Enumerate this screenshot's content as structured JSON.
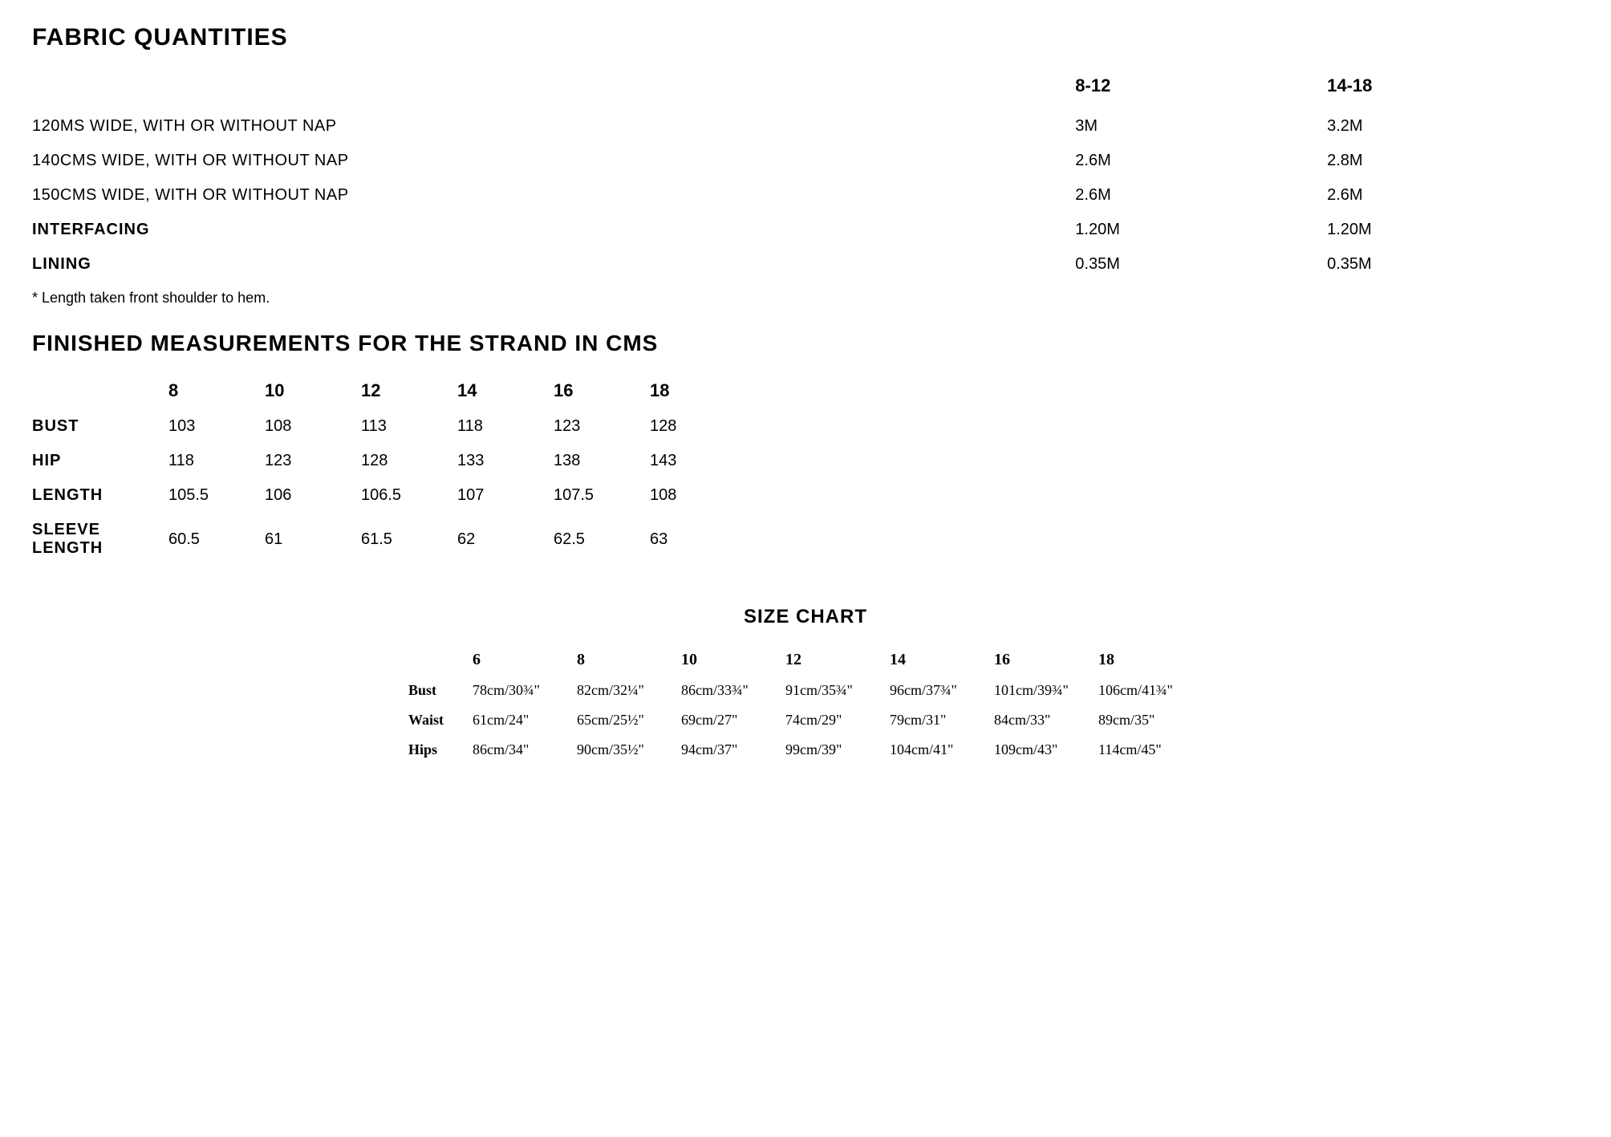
{
  "fabric": {
    "title": "FABRIC QUANTITIES",
    "header": {
      "col1": "8-12",
      "col2": "14-18"
    },
    "rows": [
      {
        "label": "120MS WIDE, WITH OR WITHOUT NAP",
        "v1": "3M",
        "v2": "3.2M",
        "bold": false
      },
      {
        "label": "140CMS WIDE, WITH OR WITHOUT NAP",
        "v1": "2.6M",
        "v2": "2.8M",
        "bold": false
      },
      {
        "label": "150CMS WIDE, WITH OR WITHOUT NAP",
        "v1": "2.6M",
        "v2": "2.6M",
        "bold": false
      },
      {
        "label": "INTERFACING",
        "v1": "1.20M",
        "v2": "1.20M",
        "bold": true
      },
      {
        "label": "LINING",
        "v1": "0.35M",
        "v2": "0.35M",
        "bold": true
      }
    ],
    "footnote": "* Length taken front shoulder to hem."
  },
  "measurements": {
    "title": "FINISHED MEASUREMENTS FOR THE STRAND IN CMS",
    "sizes": [
      "8",
      "10",
      "12",
      "14",
      "16",
      "18"
    ],
    "rows": [
      {
        "label": "BUST",
        "values": [
          "103",
          "108",
          "113",
          "118",
          "123",
          "128"
        ]
      },
      {
        "label": "HIP",
        "values": [
          "118",
          "123",
          "128",
          "133",
          "138",
          "143"
        ]
      },
      {
        "label": "LENGTH",
        "values": [
          "105.5",
          "106",
          "106.5",
          "107",
          "107.5",
          "108"
        ]
      },
      {
        "label": "SLEEVE LENGTH",
        "values": [
          "60.5",
          "61",
          "61.5",
          "62",
          "62.5",
          "63"
        ]
      }
    ]
  },
  "sizeChart": {
    "title": "SIZE CHART",
    "sizes": [
      "6",
      "8",
      "10",
      "12",
      "14",
      "16",
      "18"
    ],
    "rows": [
      {
        "label": "Bust",
        "values": [
          "78cm/30¾\"",
          "82cm/32¼\"",
          "86cm/33¾\"",
          "91cm/35¾\"",
          "96cm/37¾\"",
          "101cm/39¾\"",
          "106cm/41¾\""
        ]
      },
      {
        "label": "Waist",
        "values": [
          "61cm/24\"",
          "65cm/25½\"",
          "69cm/27\"",
          "74cm/29\"",
          "79cm/31\"",
          "84cm/33\"",
          "89cm/35\""
        ]
      },
      {
        "label": "Hips",
        "values": [
          "86cm/34\"",
          "90cm/35½\"",
          "94cm/37\"",
          "99cm/39\"",
          "104cm/41\"",
          "109cm/43\"",
          "114cm/45\""
        ]
      }
    ]
  },
  "colors": {
    "text": "#000000",
    "background": "#ffffff"
  }
}
